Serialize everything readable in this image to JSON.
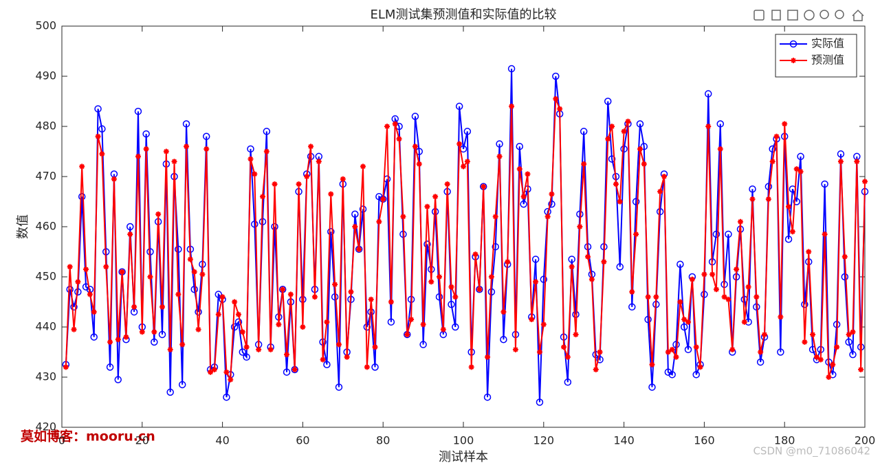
{
  "chart_data": {
    "type": "line",
    "title": "ELM测试集预测值和实际值的比较",
    "xlabel": "测试样本",
    "ylabel": "数值",
    "x": [
      1,
      2,
      3,
      4,
      5,
      6,
      7,
      8,
      9,
      10,
      11,
      12,
      13,
      14,
      15,
      16,
      17,
      18,
      19,
      20,
      21,
      22,
      23,
      24,
      25,
      26,
      27,
      28,
      29,
      30,
      31,
      32,
      33,
      34,
      35,
      36,
      37,
      38,
      39,
      40,
      41,
      42,
      43,
      44,
      45,
      46,
      47,
      48,
      49,
      50,
      51,
      52,
      53,
      54,
      55,
      56,
      57,
      58,
      59,
      60,
      61,
      62,
      63,
      64,
      65,
      66,
      67,
      68,
      69,
      70,
      71,
      72,
      73,
      74,
      75,
      76,
      77,
      78,
      79,
      80,
      81,
      82,
      83,
      84,
      85,
      86,
      87,
      88,
      89,
      90,
      91,
      92,
      93,
      94,
      95,
      96,
      97,
      98,
      99,
      100,
      101,
      102,
      103,
      104,
      105,
      106,
      107,
      108,
      109,
      110,
      111,
      112,
      113,
      114,
      115,
      116,
      117,
      118,
      119,
      120,
      121,
      122,
      123,
      124,
      125,
      126,
      127,
      128,
      129,
      130,
      131,
      132,
      133,
      134,
      135,
      136,
      137,
      138,
      139,
      140,
      141,
      142,
      143,
      144,
      145,
      146,
      147,
      148,
      149,
      150,
      151,
      152,
      153,
      154,
      155,
      156,
      157,
      158,
      159,
      160,
      161,
      162,
      163,
      164,
      165,
      166,
      167,
      168,
      169,
      170,
      171,
      172,
      173,
      174,
      175,
      176,
      177,
      178,
      179,
      180,
      181,
      182,
      183,
      184,
      185,
      186,
      187,
      188,
      189,
      190,
      191,
      192,
      193,
      194,
      195,
      196,
      197,
      198,
      199,
      200
    ],
    "series": [
      {
        "name": "实际值",
        "color": "#0000ff",
        "marker": "o",
        "values": [
          432.5,
          447.5,
          444,
          447,
          466,
          448,
          447.5,
          438,
          483.5,
          479.5,
          455,
          432,
          470.5,
          429.5,
          451,
          437.5,
          460,
          443,
          483,
          440,
          478.5,
          455,
          437,
          461,
          438.5,
          472.5,
          427,
          470,
          455.5,
          428.5,
          480.5,
          455.5,
          447.5,
          443,
          452.5,
          478,
          431.5,
          432,
          446.5,
          445.5,
          426,
          430.5,
          440,
          441,
          435,
          434,
          475.5,
          460.5,
          436.5,
          461,
          479,
          436,
          460,
          442,
          447.5,
          431,
          445,
          431.5,
          467,
          445.5,
          470.5,
          474,
          447.5,
          474,
          437,
          432.5,
          459,
          446,
          428,
          468.5,
          435,
          445.5,
          462.5,
          455.5,
          463.5,
          440,
          443,
          432,
          466,
          465.5,
          469.5,
          441,
          481.5,
          480,
          458.5,
          438.5,
          445.5,
          482,
          475,
          436.5,
          456.5,
          451.5,
          463,
          446,
          438.5,
          467,
          444.5,
          440,
          484,
          475.5,
          479,
          435,
          454,
          447.5,
          468,
          426,
          447,
          456,
          476.5,
          437.5,
          452.5,
          491.5,
          438.5,
          476,
          464.5,
          467.5,
          442,
          453.5,
          425,
          449.5,
          463,
          464.5,
          490,
          482.5,
          438,
          429,
          453.5,
          442.5,
          462.5,
          479,
          456,
          450.5,
          434.5,
          433.5,
          456,
          485,
          473.5,
          470,
          452,
          475.5,
          480.5,
          444,
          465,
          480.5,
          476,
          441.5,
          428,
          444.5,
          463,
          470.5,
          431,
          430.5,
          436.5,
          452.5,
          440,
          435.5,
          450,
          430.5,
          432.5,
          446.5,
          486.5,
          453,
          458.5,
          480.5,
          448.5,
          458.5,
          435,
          450,
          459.5,
          445.5,
          441,
          467.5,
          444,
          433,
          438,
          468,
          475.5,
          477.5,
          435,
          478,
          457.5,
          467.5,
          465,
          474,
          444.5,
          453,
          435.5,
          433.5,
          435.5,
          468.5,
          433,
          430.5,
          440.5,
          474.5,
          450,
          437,
          434.5,
          474,
          436,
          467
        ]
      },
      {
        "name": "预测值",
        "color": "#ff0000",
        "marker": "*",
        "values": [
          432,
          452,
          439.5,
          449,
          472,
          451.5,
          446.5,
          443,
          478,
          474.5,
          452,
          437,
          469.5,
          437.5,
          451,
          438,
          458.5,
          444,
          474,
          439,
          475.5,
          450,
          439,
          462.5,
          444,
          475,
          435.5,
          473,
          446.5,
          436.5,
          476,
          453.5,
          451,
          439.5,
          450.5,
          475.5,
          431,
          431.5,
          442.5,
          446,
          431,
          429.5,
          445,
          442.5,
          439,
          436,
          473.5,
          470.5,
          435.5,
          466,
          475,
          435.5,
          468.5,
          440.5,
          447.5,
          434.5,
          446.5,
          431.5,
          468.5,
          440,
          470,
          476,
          446,
          473,
          433.5,
          441,
          466.5,
          448.5,
          436.5,
          469.5,
          434,
          447,
          460,
          455.5,
          472,
          432,
          445.5,
          436,
          461,
          465.5,
          480,
          445,
          480.5,
          477.5,
          462,
          438.5,
          441.5,
          476,
          472.5,
          440.5,
          464,
          449,
          466,
          450,
          439.5,
          468.5,
          448,
          446,
          476.5,
          472,
          473,
          432,
          454.5,
          447.5,
          468,
          434,
          450,
          462,
          474,
          443,
          453,
          484,
          435.5,
          471.5,
          466,
          470.5,
          441.5,
          449,
          435,
          440.5,
          462,
          466.5,
          485.5,
          483.5,
          436,
          434,
          452,
          438.5,
          460,
          472.5,
          454,
          449.5,
          431.5,
          435,
          453,
          477.5,
          480,
          468.5,
          465,
          479,
          481,
          447,
          458.5,
          475.5,
          472.5,
          446,
          432.5,
          446,
          467,
          470,
          435,
          435.5,
          434,
          445,
          441.5,
          441,
          449.5,
          436,
          432,
          450.5,
          480,
          450.5,
          447.5,
          475.5,
          446,
          445.5,
          435.5,
          451.5,
          461,
          441,
          448,
          465.5,
          446,
          435,
          438.5,
          465.5,
          473,
          478,
          442,
          480.5,
          464,
          459,
          471.5,
          471,
          437,
          455,
          438.5,
          434,
          433.5,
          458.5,
          430,
          432.5,
          436,
          473,
          454,
          438.5,
          439,
          473,
          431.5,
          469
        ]
      }
    ],
    "xlim": [
      0,
      200
    ],
    "xticks": [
      0,
      20,
      40,
      60,
      80,
      100,
      120,
      140,
      160,
      180,
      200
    ],
    "ylim": [
      420,
      500
    ],
    "yticks": [
      420,
      430,
      440,
      450,
      460,
      470,
      480,
      490,
      500
    ],
    "grid": false,
    "legend_position": "northeast"
  },
  "watermarks": [
    "莫如博客：mooru.cn",
    "CSDN @m0_71086042"
  ]
}
